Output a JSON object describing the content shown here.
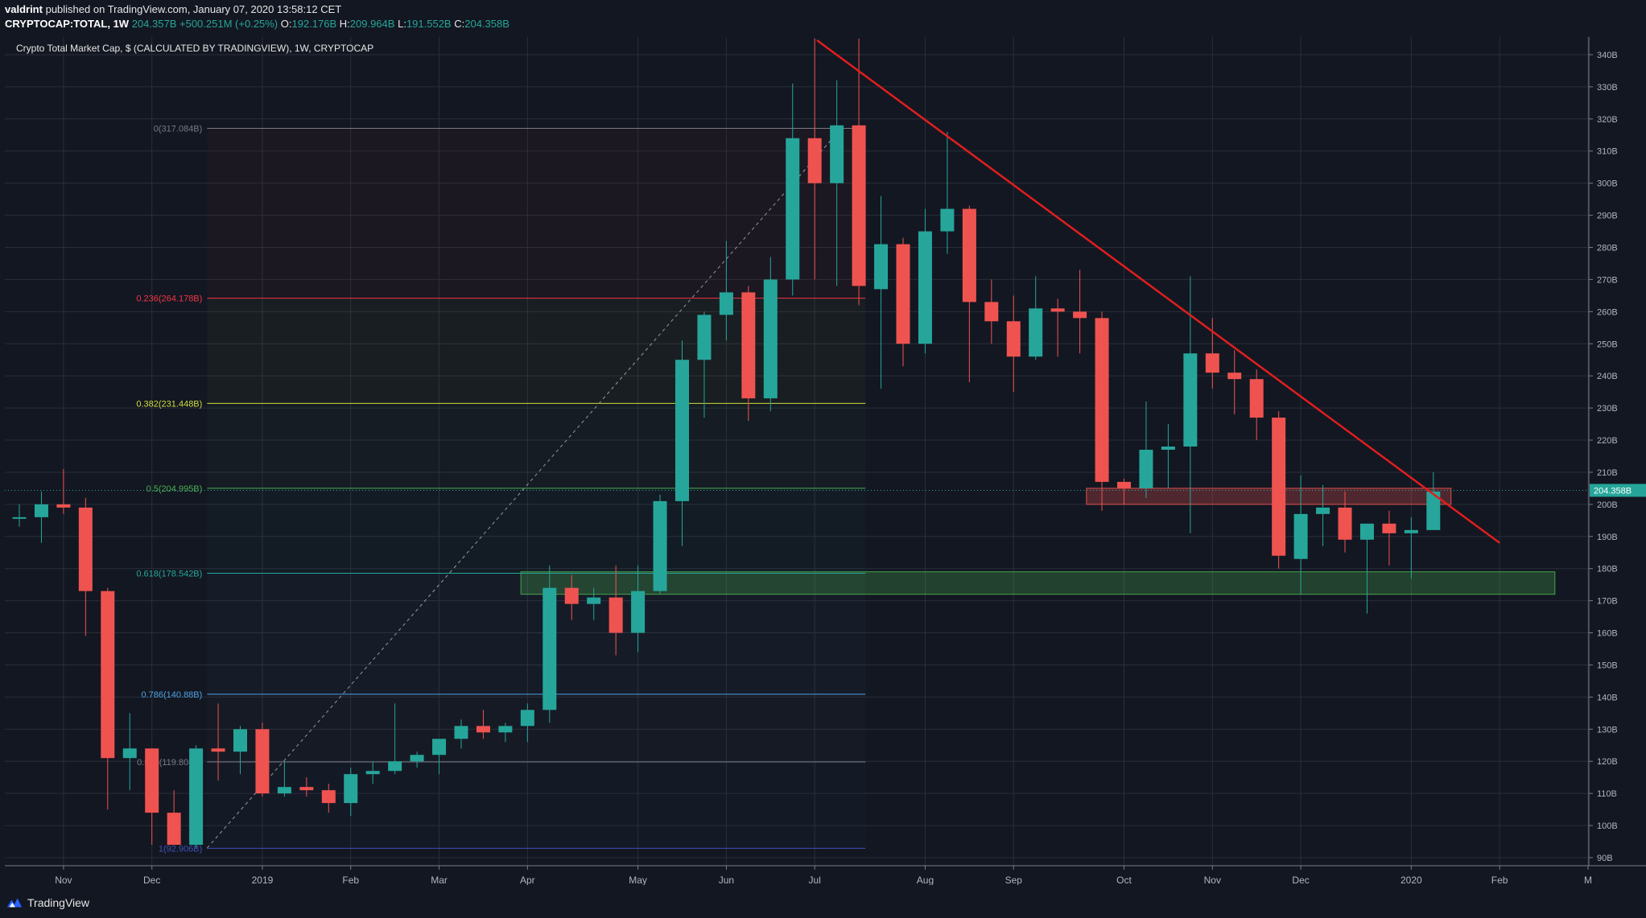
{
  "header": {
    "author": "valdrint",
    "published_text": "published on TradingView.com, January 07, 2020 13:58:12 CET",
    "symbol": "CRYPTOCAP:TOTAL, 1W",
    "last": "204.357B",
    "change": "+500.251M (+0.25%)",
    "open_label": "O:",
    "open": "192.176B",
    "high_label": "H:",
    "high": "209.964B",
    "low_label": "L:",
    "low": "191.552B",
    "close_label": "C:",
    "close": "204.358B"
  },
  "footer": {
    "brand": "TradingView"
  },
  "colors": {
    "up": "#26a69a",
    "down": "#ef5350",
    "bg": "#131722",
    "grid": "#2a2e39",
    "trend": "#e01e1e",
    "axis_text": "#b2b5be"
  },
  "chart_data": {
    "type": "candlestick",
    "title": "Crypto Total Market Cap, $ (CALCULATED BY TRADINGVIEW), 1W, CRYPTOCAP",
    "ylim": [
      90,
      344
    ],
    "y_ticks": [
      90,
      100,
      110,
      120,
      130,
      140,
      150,
      160,
      170,
      180,
      190,
      200,
      210,
      220,
      230,
      240,
      250,
      260,
      270,
      280,
      290,
      300,
      310,
      320,
      330,
      340
    ],
    "y_tick_suffix": "B",
    "x_ticks": [
      {
        "label": "Nov",
        "week": 2
      },
      {
        "label": "Dec",
        "week": 6
      },
      {
        "label": "2019",
        "week": 11
      },
      {
        "label": "Feb",
        "week": 15
      },
      {
        "label": "Mar",
        "week": 19
      },
      {
        "label": "Apr",
        "week": 23
      },
      {
        "label": "May",
        "week": 28
      },
      {
        "label": "Jun",
        "week": 32
      },
      {
        "label": "Jul",
        "week": 36
      },
      {
        "label": "Aug",
        "week": 41
      },
      {
        "label": "Sep",
        "week": 45
      },
      {
        "label": "Oct",
        "week": 50
      },
      {
        "label": "Nov",
        "week": 54
      },
      {
        "label": "Dec",
        "week": 58
      },
      {
        "label": "2020",
        "week": 63
      },
      {
        "label": "Feb",
        "week": 67
      },
      {
        "label": "M",
        "week": 71
      }
    ],
    "last_price_label": "204.358B",
    "last_price": 204.358,
    "candles": [
      {
        "o": 196,
        "h": 200,
        "l": 193,
        "c": 196
      },
      {
        "o": 196,
        "h": 204,
        "l": 188,
        "c": 200
      },
      {
        "o": 200,
        "h": 211,
        "l": 197,
        "c": 199
      },
      {
        "o": 199,
        "h": 202,
        "l": 159,
        "c": 173
      },
      {
        "o": 173,
        "h": 174,
        "l": 105,
        "c": 121
      },
      {
        "o": 121,
        "h": 135,
        "l": 111,
        "c": 124
      },
      {
        "o": 124,
        "h": 124,
        "l": 94,
        "c": 104
      },
      {
        "o": 104,
        "h": 111,
        "l": 94,
        "c": 94
      },
      {
        "o": 94,
        "h": 125,
        "l": 93,
        "c": 124
      },
      {
        "o": 124,
        "h": 138,
        "l": 114,
        "c": 123
      },
      {
        "o": 123,
        "h": 131,
        "l": 116,
        "c": 130
      },
      {
        "o": 130,
        "h": 132,
        "l": 109,
        "c": 110
      },
      {
        "o": 110,
        "h": 120,
        "l": 109,
        "c": 112
      },
      {
        "o": 112,
        "h": 115,
        "l": 109,
        "c": 111
      },
      {
        "o": 111,
        "h": 113,
        "l": 104,
        "c": 107
      },
      {
        "o": 107,
        "h": 118,
        "l": 103,
        "c": 116
      },
      {
        "o": 116,
        "h": 120,
        "l": 113,
        "c": 117
      },
      {
        "o": 117,
        "h": 138,
        "l": 116,
        "c": 120
      },
      {
        "o": 120,
        "h": 123,
        "l": 118,
        "c": 122
      },
      {
        "o": 122,
        "h": 126,
        "l": 116,
        "c": 127
      },
      {
        "o": 127,
        "h": 133,
        "l": 124,
        "c": 131
      },
      {
        "o": 131,
        "h": 136,
        "l": 127,
        "c": 129
      },
      {
        "o": 129,
        "h": 132,
        "l": 126,
        "c": 131
      },
      {
        "o": 131,
        "h": 138,
        "l": 126,
        "c": 136
      },
      {
        "o": 136,
        "h": 181,
        "l": 132,
        "c": 174
      },
      {
        "o": 174,
        "h": 178,
        "l": 164,
        "c": 169
      },
      {
        "o": 169,
        "h": 174,
        "l": 164,
        "c": 171
      },
      {
        "o": 171,
        "h": 181,
        "l": 153,
        "c": 160
      },
      {
        "o": 160,
        "h": 181,
        "l": 154,
        "c": 173
      },
      {
        "o": 173,
        "h": 203,
        "l": 172,
        "c": 201
      },
      {
        "o": 201,
        "h": 251,
        "l": 187,
        "c": 245
      },
      {
        "o": 245,
        "h": 260,
        "l": 227,
        "c": 259
      },
      {
        "o": 259,
        "h": 282,
        "l": 251,
        "c": 266
      },
      {
        "o": 266,
        "h": 268,
        "l": 226,
        "c": 233
      },
      {
        "o": 233,
        "h": 277,
        "l": 229,
        "c": 270
      },
      {
        "o": 270,
        "h": 331,
        "l": 265,
        "c": 314
      },
      {
        "o": 314,
        "h": 345,
        "l": 270,
        "c": 300
      },
      {
        "o": 300,
        "h": 332,
        "l": 268,
        "c": 318
      },
      {
        "o": 318,
        "h": 345,
        "l": 262,
        "c": 268
      },
      {
        "o": 267,
        "h": 296,
        "l": 236,
        "c": 281
      },
      {
        "o": 281,
        "h": 283,
        "l": 243,
        "c": 250
      },
      {
        "o": 250,
        "h": 292,
        "l": 247,
        "c": 285
      },
      {
        "o": 285,
        "h": 316,
        "l": 278,
        "c": 292
      },
      {
        "o": 292,
        "h": 293,
        "l": 238,
        "c": 263
      },
      {
        "o": 263,
        "h": 270,
        "l": 250,
        "c": 257
      },
      {
        "o": 257,
        "h": 265,
        "l": 235,
        "c": 246
      },
      {
        "o": 246,
        "h": 271,
        "l": 245,
        "c": 261
      },
      {
        "o": 261,
        "h": 264,
        "l": 246,
        "c": 260
      },
      {
        "o": 260,
        "h": 273,
        "l": 247,
        "c": 258
      },
      {
        "o": 258,
        "h": 260,
        "l": 198,
        "c": 207
      },
      {
        "o": 207,
        "h": 208,
        "l": 200,
        "c": 205
      },
      {
        "o": 205,
        "h": 232,
        "l": 202,
        "c": 217
      },
      {
        "o": 217,
        "h": 225,
        "l": 205,
        "c": 218
      },
      {
        "o": 218,
        "h": 271,
        "l": 191,
        "c": 247
      },
      {
        "o": 247,
        "h": 258,
        "l": 236,
        "c": 241
      },
      {
        "o": 241,
        "h": 248,
        "l": 228,
        "c": 239
      },
      {
        "o": 239,
        "h": 242,
        "l": 220,
        "c": 227
      },
      {
        "o": 227,
        "h": 229,
        "l": 180,
        "c": 184
      },
      {
        "o": 183,
        "h": 209,
        "l": 172,
        "c": 197
      },
      {
        "o": 197,
        "h": 206,
        "l": 187,
        "c": 199
      },
      {
        "o": 199,
        "h": 204,
        "l": 185,
        "c": 189
      },
      {
        "o": 189,
        "h": 194,
        "l": 166,
        "c": 194
      },
      {
        "o": 194,
        "h": 198,
        "l": 181,
        "c": 191
      },
      {
        "o": 191,
        "h": 196,
        "l": 177,
        "c": 192
      },
      {
        "o": 192,
        "h": 210,
        "l": 192,
        "c": 204
      }
    ],
    "fib_levels": [
      {
        "label": "0(317.084B)",
        "value": 317.084,
        "color": "#787b86"
      },
      {
        "label": "0.236(264.178B)",
        "value": 264.178,
        "color": "#f23645"
      },
      {
        "label": "0.382(231.448B)",
        "value": 231.448,
        "color": "#cddc39"
      },
      {
        "label": "0.5(204.995B)",
        "value": 204.995,
        "color": "#4caf50"
      },
      {
        "label": "0.618(178.542B)",
        "value": 178.542,
        "color": "#26a69a"
      },
      {
        "label": "0.786(140.88B)",
        "value": 140.88,
        "color": "#4fa3e0"
      },
      {
        "label": "0.886(119.808B)",
        "value": 119.808,
        "color": "#787b86"
      },
      {
        "label": "1(92.906B)",
        "value": 92.906,
        "color": "#3f51b5"
      }
    ],
    "fib_x_range": [
      8.5,
      38.3
    ],
    "fib_anchor": {
      "from_week": 8.5,
      "from": 93,
      "to_week": 37.2,
      "to": 317
    },
    "zones": [
      {
        "week_from": 22.7,
        "week_to": 69.5,
        "low": 172,
        "high": 179,
        "color": "green"
      },
      {
        "week_from": 48.3,
        "week_to": 64.8,
        "low": 200,
        "high": 205,
        "color": "red"
      }
    ],
    "trendline": {
      "week_from": 36.1,
      "value_from": 344.5,
      "week_to": 67,
      "value_to": 188
    }
  }
}
